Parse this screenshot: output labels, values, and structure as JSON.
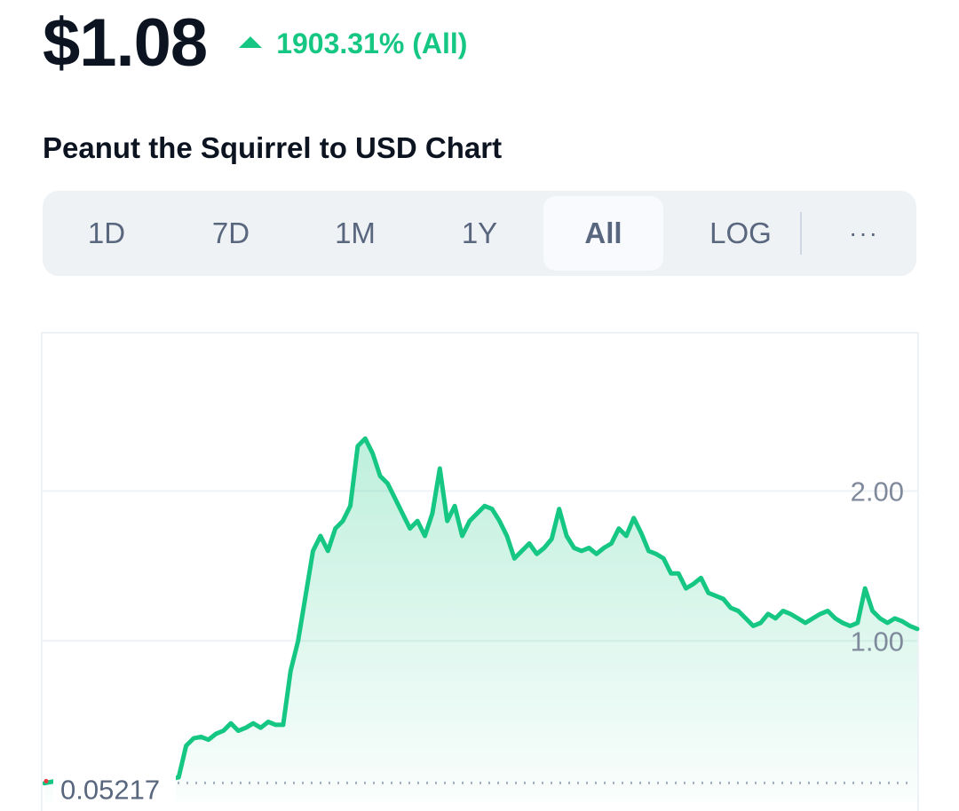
{
  "header": {
    "price": "$1.08",
    "change": "1903.31% (All)",
    "change_icon": "triangle-up-icon"
  },
  "chart_title": "Peanut the Squirrel to USD Chart",
  "ranges": {
    "items": [
      "1D",
      "7D",
      "1M",
      "1Y",
      "All",
      "LOG"
    ],
    "active": "All",
    "more_label": "···"
  },
  "colors": {
    "accent_green": "#16c784",
    "text_dark": "#0d1421",
    "text_muted": "#58667e"
  },
  "chart_data": {
    "type": "area",
    "title": "",
    "xlabel": "",
    "ylabel": "",
    "y_ticks": [
      "2.00",
      "1.00"
    ],
    "y_tick_values": [
      2.0,
      1.0
    ],
    "min_marker_label": "0.05217",
    "min_marker_value": 0.05217,
    "ylim": [
      -0.07,
      3.05
    ],
    "grid": true,
    "series": [
      {
        "values": [
          0.05,
          0.06,
          0.07,
          0.07,
          0.08,
          0.09,
          0.1,
          0.1,
          0.11,
          0.1,
          0.08,
          0.07,
          0.06,
          0.07,
          0.07,
          0.08,
          0.08,
          0.08,
          0.09,
          0.3,
          0.35,
          0.36,
          0.34,
          0.38,
          0.4,
          0.45,
          0.4,
          0.42,
          0.45,
          0.42,
          0.46,
          0.44,
          0.44,
          0.8,
          1.0,
          1.3,
          1.6,
          1.7,
          1.6,
          1.75,
          1.8,
          1.9,
          2.3,
          2.35,
          2.25,
          2.1,
          2.05,
          1.95,
          1.85,
          1.75,
          1.8,
          1.7,
          1.85,
          2.15,
          1.8,
          1.9,
          1.7,
          1.8,
          1.85,
          1.9,
          1.88,
          1.8,
          1.7,
          1.55,
          1.6,
          1.65,
          1.58,
          1.62,
          1.68,
          1.88,
          1.7,
          1.62,
          1.6,
          1.62,
          1.58,
          1.62,
          1.65,
          1.75,
          1.7,
          1.82,
          1.72,
          1.6,
          1.58,
          1.55,
          1.45,
          1.45,
          1.35,
          1.38,
          1.42,
          1.32,
          1.3,
          1.28,
          1.22,
          1.2,
          1.15,
          1.1,
          1.12,
          1.18,
          1.15,
          1.2,
          1.18,
          1.15,
          1.12,
          1.15,
          1.18,
          1.2,
          1.15,
          1.12,
          1.1,
          1.12,
          1.35,
          1.2,
          1.15,
          1.12,
          1.15,
          1.13,
          1.1,
          1.08
        ]
      }
    ]
  }
}
